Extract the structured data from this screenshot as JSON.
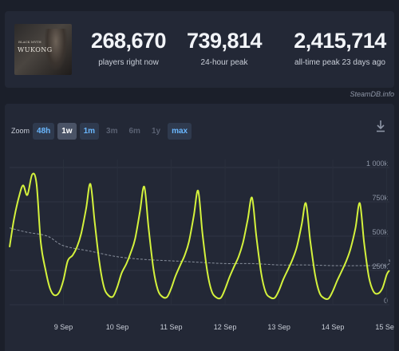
{
  "game": {
    "logo_text": "WUKONG",
    "logo_sub": "BLACK MYTH"
  },
  "stats": {
    "current": {
      "value": "268,670",
      "label": "players right now"
    },
    "peak24": {
      "value": "739,814",
      "label": "24-hour peak"
    },
    "alltime": {
      "value": "2,415,714",
      "label": "all-time peak 23 days ago"
    }
  },
  "credit": "SteamDB.info",
  "zoom": {
    "label": "Zoom",
    "buttons": [
      {
        "label": "48h",
        "state": "on"
      },
      {
        "label": "1w",
        "state": "selected"
      },
      {
        "label": "1m",
        "state": "on"
      },
      {
        "label": "3m",
        "state": "off"
      },
      {
        "label": "6m",
        "state": "off"
      },
      {
        "label": "1y",
        "state": "off"
      },
      {
        "label": "max",
        "state": "on"
      }
    ]
  },
  "chart_data": {
    "type": "line",
    "x_ticks": [
      "9 Sep",
      "10 Sep",
      "11 Sep",
      "12 Sep",
      "13 Sep",
      "14 Sep",
      "15 Sep"
    ],
    "y_ticks": [
      "0",
      "250k",
      "500k",
      "750k",
      "1 000k"
    ],
    "ylim": [
      0,
      1000000
    ],
    "grid": true,
    "colors": {
      "players": "#d4f23c",
      "average": "#8a919e"
    },
    "series": [
      {
        "key": "players",
        "x": [
          8.0,
          8.08,
          8.17,
          8.25,
          8.33,
          8.42,
          8.5,
          8.58,
          8.67,
          8.75,
          8.83,
          8.92,
          9.0,
          9.08,
          9.17,
          9.25,
          9.33,
          9.42,
          9.5,
          9.58,
          9.67,
          9.75,
          9.83,
          9.92,
          10.0,
          10.08,
          10.17,
          10.25,
          10.33,
          10.42,
          10.5,
          10.58,
          10.67,
          10.75,
          10.83,
          10.92,
          11.0,
          11.08,
          11.17,
          11.25,
          11.33,
          11.42,
          11.5,
          11.58,
          11.67,
          11.75,
          11.83,
          11.92,
          12.0,
          12.08,
          12.17,
          12.25,
          12.33,
          12.42,
          12.5,
          12.58,
          12.67,
          12.75,
          12.83,
          12.92,
          13.0,
          13.08,
          13.17,
          13.25,
          13.33,
          13.42,
          13.5,
          13.58,
          13.67,
          13.75,
          13.83,
          13.92,
          14.0,
          14.08,
          14.17,
          14.25,
          14.33,
          14.42,
          14.5,
          14.58,
          14.67,
          14.75,
          14.83,
          14.92,
          15.0,
          15.05
        ],
        "values": [
          420000,
          620000,
          780000,
          870000,
          800000,
          950000,
          880000,
          450000,
          250000,
          120000,
          70000,
          90000,
          180000,
          320000,
          360000,
          420000,
          520000,
          700000,
          880000,
          600000,
          300000,
          130000,
          70000,
          60000,
          130000,
          230000,
          300000,
          380000,
          480000,
          680000,
          860000,
          560000,
          260000,
          110000,
          60000,
          55000,
          120000,
          210000,
          290000,
          360000,
          460000,
          650000,
          830000,
          520000,
          240000,
          100000,
          55000,
          50000,
          115000,
          200000,
          280000,
          350000,
          450000,
          620000,
          780000,
          500000,
          230000,
          95000,
          55000,
          50000,
          105000,
          185000,
          260000,
          330000,
          420000,
          580000,
          740000,
          470000,
          220000,
          90000,
          50000,
          45000,
          100000,
          175000,
          250000,
          320000,
          410000,
          560000,
          740000,
          450000,
          200000,
          100000,
          80000,
          120000,
          220000,
          250000
        ]
      },
      {
        "key": "average",
        "x": [
          8.0,
          8.3,
          8.7,
          9.0,
          9.5,
          10.0,
          10.5,
          11.0,
          11.5,
          12.0,
          12.5,
          13.0,
          13.5,
          14.0,
          14.5,
          15.0,
          15.05
        ],
        "values": [
          560000,
          530000,
          500000,
          430000,
          390000,
          350000,
          330000,
          320000,
          310000,
          300000,
          300000,
          290000,
          290000,
          285000,
          285000,
          290000,
          330000
        ]
      }
    ]
  }
}
